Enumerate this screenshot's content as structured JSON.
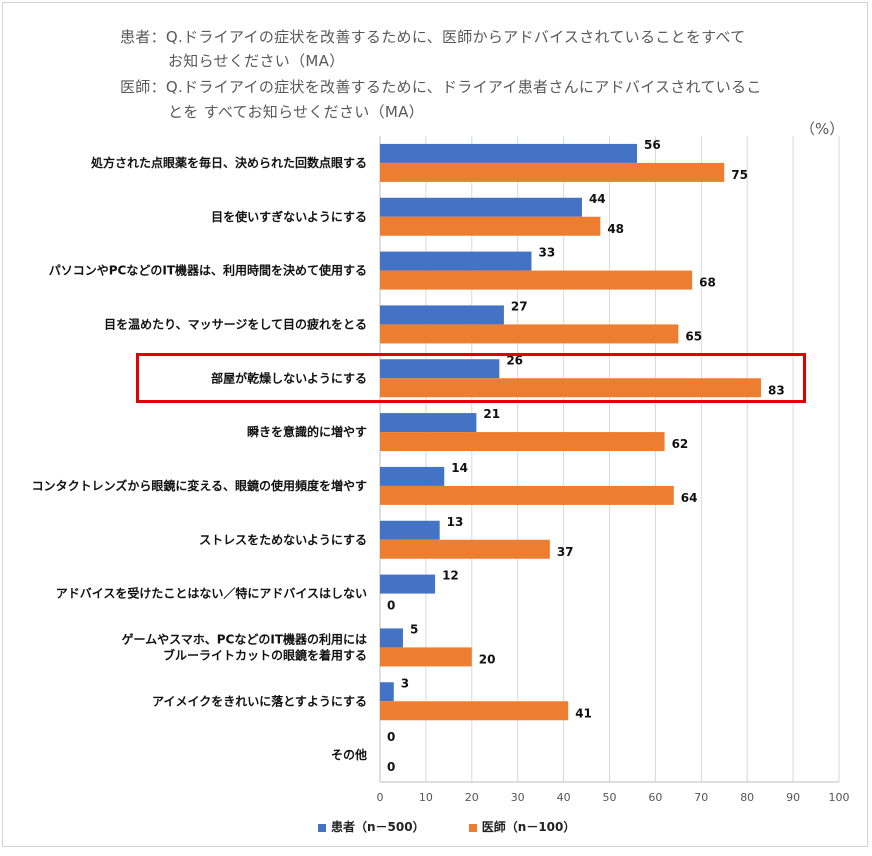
{
  "header": {
    "patient_q_line1": "患者：Q.ドライアイの症状を改善するために、医師からアドバイスされていることをすべて",
    "patient_q_line2": "お知らせください（MA）",
    "doctor_q_line1": "医師：Q.ドライアイの症状を改善するために、ドライアイ患者さんにアドバイスされているこ",
    "doctor_q_line2": "とを すべてお知らせください（MA）",
    "unit": "（%）"
  },
  "colors": {
    "patient": "#4472c4",
    "doctor": "#ed7d31",
    "highlight": "#e00000",
    "grid": "#d9d9d9"
  },
  "chart_data": {
    "type": "bar",
    "orientation": "horizontal",
    "categories": [
      [
        "処方された点眼薬を毎日、決められた回数点眼する"
      ],
      [
        "目を使いすぎないようにする"
      ],
      [
        "パソコンやPCなどのIT機器は、利用時間を決めて使用する"
      ],
      [
        "目を温めたり、マッサージをして目の疲れをとる"
      ],
      [
        "部屋が乾燥しないようにする"
      ],
      [
        "瞬きを意識的に増やす"
      ],
      [
        "コンタクトレンズから眼鏡に変える、眼鏡の使用頻度を増やす"
      ],
      [
        "ストレスをためないようにする"
      ],
      [
        "アドバイスを受けたことはない／特にアドバイスはしない"
      ],
      [
        "ゲームやスマホ、PCなどのIT機器の利用には",
        "ブルーライトカットの眼鏡を着用する"
      ],
      [
        "アイメイクをきれいに落とすようにする"
      ],
      [
        "その他"
      ]
    ],
    "series": [
      {
        "name": "患者（n－500）",
        "values": [
          56,
          44,
          33,
          27,
          26,
          21,
          14,
          13,
          12,
          5,
          3,
          0
        ]
      },
      {
        "name": "医師（n－100）",
        "values": [
          75,
          48,
          68,
          65,
          83,
          62,
          64,
          37,
          0,
          20,
          41,
          0
        ]
      }
    ],
    "xlim": [
      0,
      100
    ],
    "xticks": [
      "0",
      "10",
      "20",
      "30",
      "40",
      "50",
      "60",
      "70",
      "80",
      "90",
      "100"
    ],
    "highlighted_category": "部屋が乾燥しないようにする",
    "grid": true,
    "legend_position": "bottom"
  }
}
